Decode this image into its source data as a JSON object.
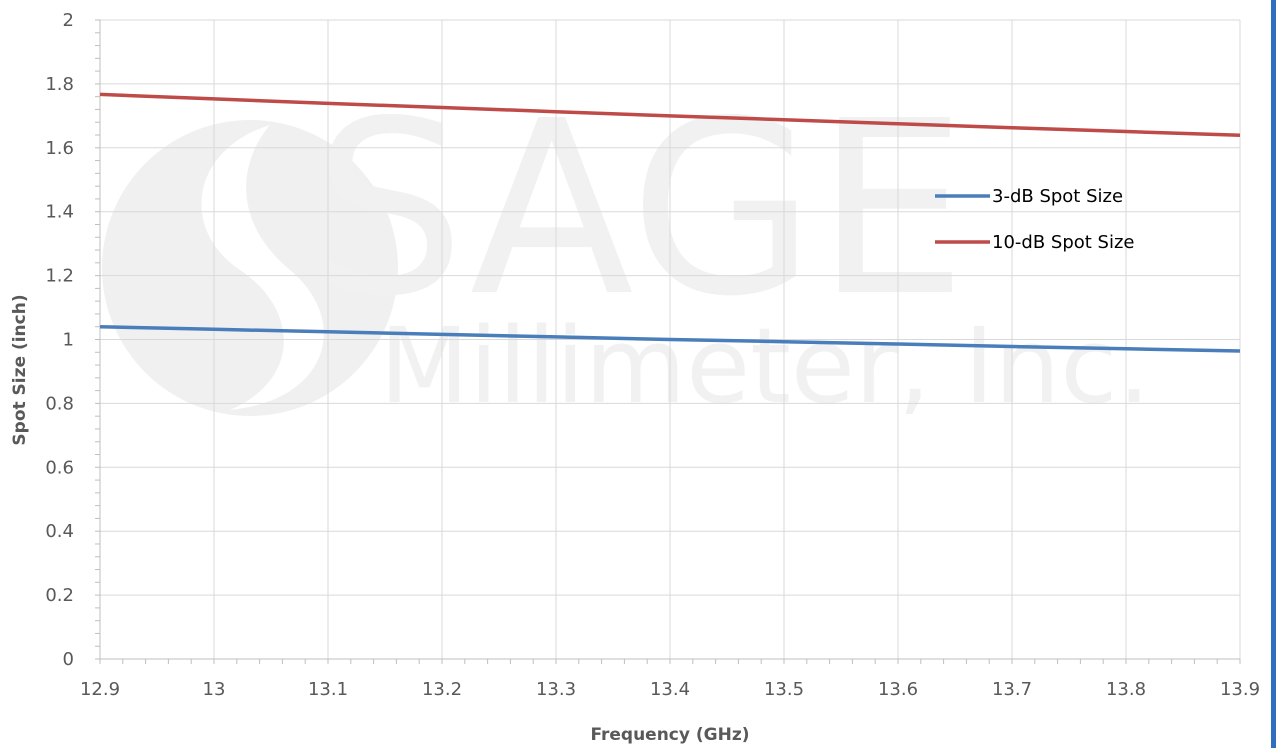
{
  "chart_data": {
    "type": "line",
    "xlabel": "Frequency (GHz)",
    "ylabel": "Spot Size (inch)",
    "xlim": [
      12.9,
      13.9
    ],
    "ylim": [
      0,
      2
    ],
    "x_ticks": [
      "12.9",
      "13",
      "13.1",
      "13.2",
      "13.3",
      "13.4",
      "13.5",
      "13.6",
      "13.7",
      "13.8",
      "13.9"
    ],
    "y_ticks": [
      "0",
      "0.2",
      "0.4",
      "0.6",
      "0.8",
      "1",
      "1.2",
      "1.4",
      "1.6",
      "1.8",
      "2"
    ],
    "grid": true,
    "legend_position": "right",
    "series": [
      {
        "name": "3-dB Spot Size",
        "color": "#4a7ebb",
        "x": [
          12.9,
          13.0,
          13.1,
          13.2,
          13.3,
          13.4,
          13.5,
          13.6,
          13.7,
          13.8,
          13.9
        ],
        "y": [
          1.04,
          1.032,
          1.024,
          1.016,
          1.008,
          1.0,
          0.993,
          0.986,
          0.978,
          0.971,
          0.964
        ]
      },
      {
        "name": "10-dB Spot Size",
        "color": "#be4b48",
        "x": [
          12.9,
          13.0,
          13.1,
          13.2,
          13.3,
          13.4,
          13.5,
          13.6,
          13.7,
          13.8,
          13.9
        ],
        "y": [
          1.767,
          1.753,
          1.739,
          1.726,
          1.713,
          1.7,
          1.688,
          1.675,
          1.663,
          1.651,
          1.639
        ]
      }
    ]
  },
  "watermark": {
    "line1": "SAGE",
    "line2": "Millimeter, Inc."
  }
}
